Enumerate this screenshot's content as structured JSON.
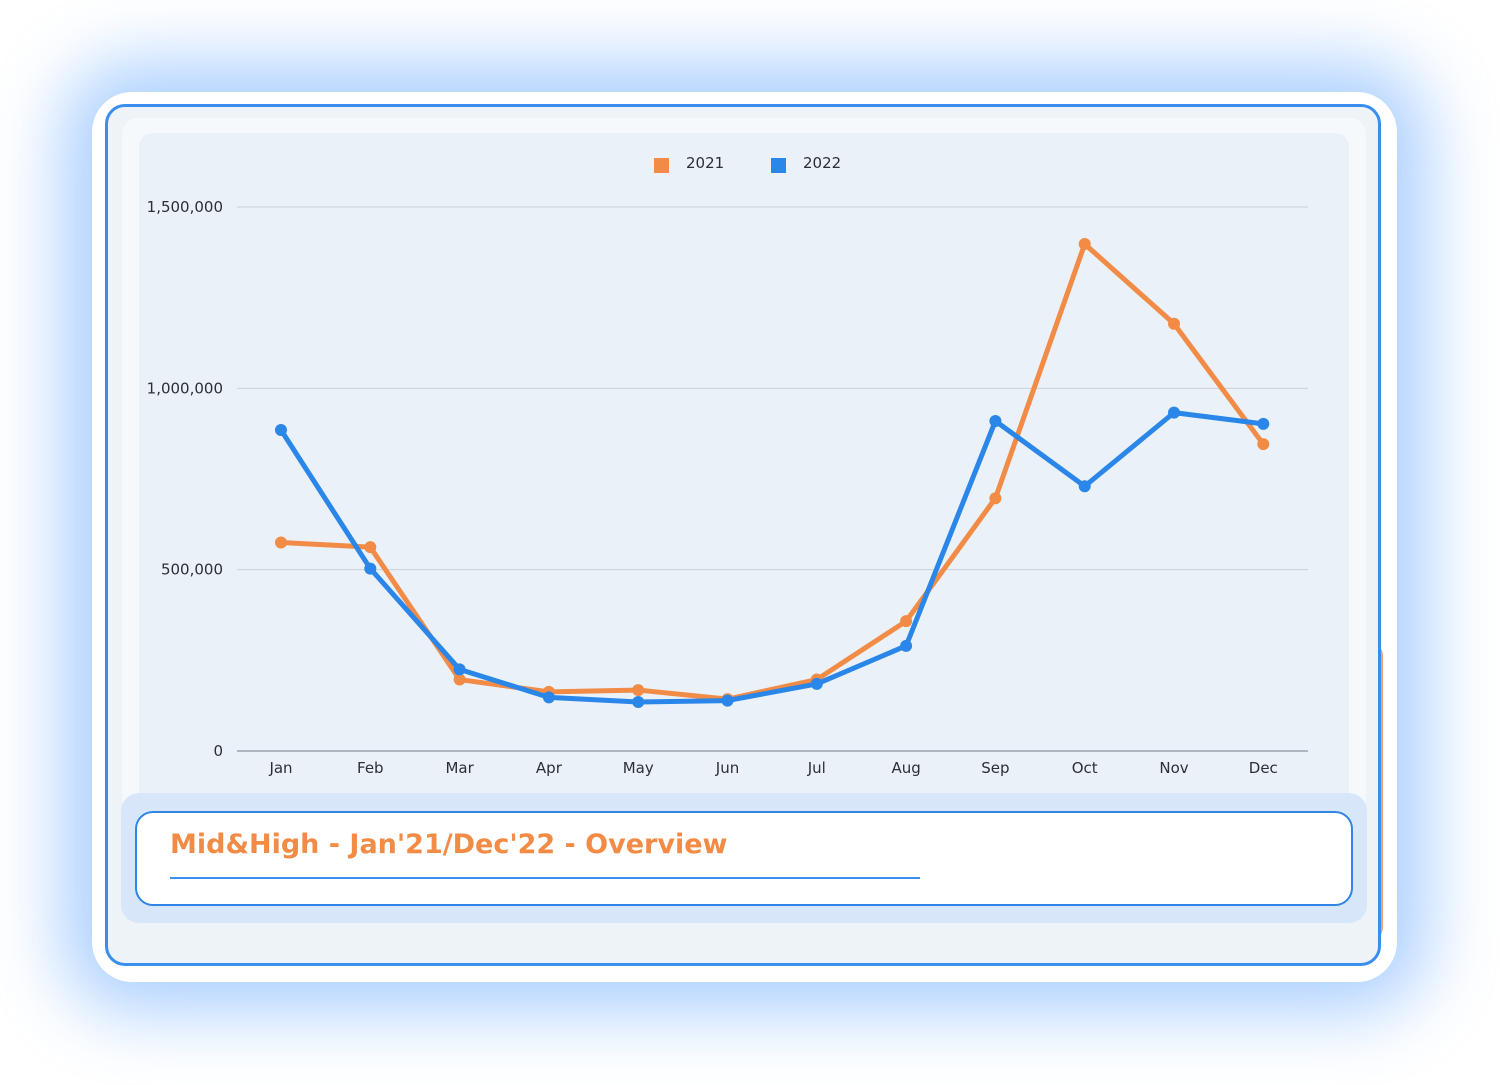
{
  "chart_data": {
    "type": "line",
    "title": "",
    "xlabel": "",
    "ylabel": "",
    "categories": [
      "Jan",
      "Feb",
      "Mar",
      "Apr",
      "May",
      "Jun",
      "Jul",
      "Aug",
      "Sep",
      "Oct",
      "Nov",
      "Dec"
    ],
    "ylim": [
      0,
      1500000
    ],
    "yticks": [
      0,
      500000,
      1000000,
      1500000
    ],
    "ytick_labels": [
      "0",
      "500,000",
      "1,000,000",
      "1,500,000"
    ],
    "grid": true,
    "legend_position": "top-center",
    "series": [
      {
        "name": "2021",
        "color": "#f28b45",
        "values": [
          575000,
          562000,
          197000,
          163000,
          168000,
          143000,
          197000,
          358000,
          697000,
          1398000,
          1178000,
          846000
        ]
      },
      {
        "name": "2022",
        "color": "#2a86e8",
        "values": [
          885000,
          503000,
          225000,
          148000,
          135000,
          139000,
          185000,
          290000,
          910000,
          730000,
          933000,
          902000
        ]
      }
    ]
  },
  "caption": {
    "title": "Mid&High - Jan'21/Dec'22 - Overview"
  }
}
